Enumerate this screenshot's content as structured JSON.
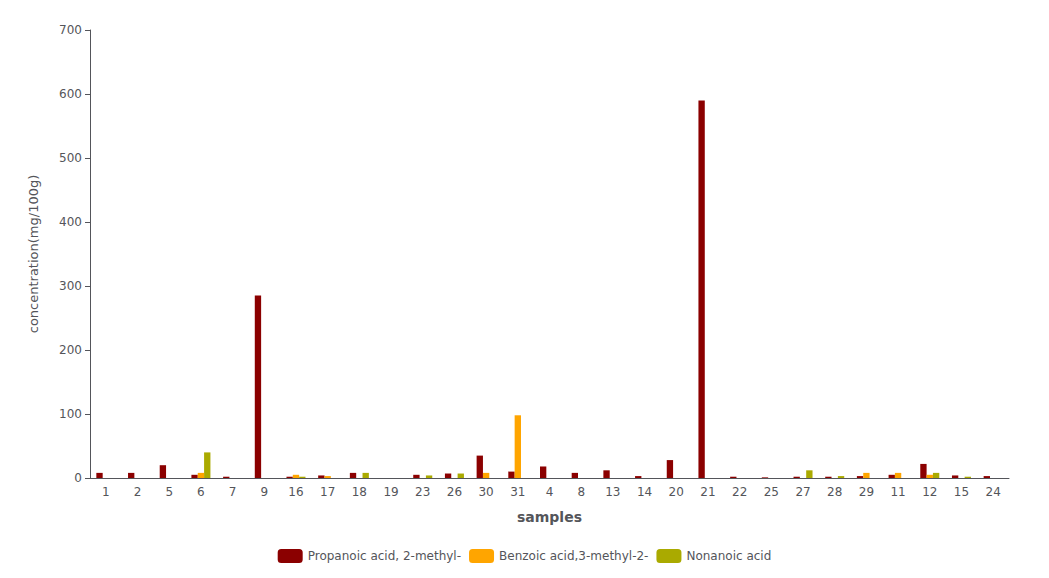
{
  "chart_data": {
    "type": "bar",
    "categories": [
      "1",
      "2",
      "5",
      "6",
      "7",
      "9",
      "16",
      "17",
      "18",
      "19",
      "23",
      "26",
      "30",
      "31",
      "4",
      "8",
      "13",
      "14",
      "20",
      "21",
      "22",
      "25",
      "27",
      "28",
      "29",
      "11",
      "12",
      "15",
      "24"
    ],
    "series": [
      {
        "name": "Propanoic acid, 2-methyl-",
        "color": "#8B0000",
        "values": [
          8,
          8,
          20,
          5,
          2,
          285,
          2,
          4,
          8,
          0,
          5,
          7,
          35,
          10,
          18,
          8,
          12,
          3,
          28,
          590,
          2,
          1,
          2,
          2,
          3,
          5,
          22,
          4,
          3
        ]
      },
      {
        "name": "Benzoic acid,3-methyl-2-",
        "color": "#FFA500",
        "values": [
          0,
          0,
          0,
          8,
          0,
          0,
          5,
          3,
          0,
          0,
          0,
          0,
          8,
          98,
          0,
          0,
          0,
          0,
          0,
          0,
          0,
          0,
          0,
          0,
          8,
          8,
          5,
          0,
          0
        ]
      },
      {
        "name": "Nonanoic acid",
        "color": "#AAAA00",
        "values": [
          0,
          0,
          0,
          40,
          0,
          0,
          2,
          0,
          8,
          0,
          4,
          7,
          0,
          0,
          0,
          0,
          0,
          0,
          0,
          0,
          0,
          0,
          12,
          3,
          0,
          0,
          8,
          2,
          0
        ]
      }
    ],
    "xlabel": "samples",
    "ylabel": "concentration(mg/100g)",
    "ylim": [
      0,
      700
    ],
    "yticks": [
      0,
      100,
      200,
      300,
      400,
      500,
      600,
      700
    ],
    "grid": false,
    "legend": "bottom"
  }
}
